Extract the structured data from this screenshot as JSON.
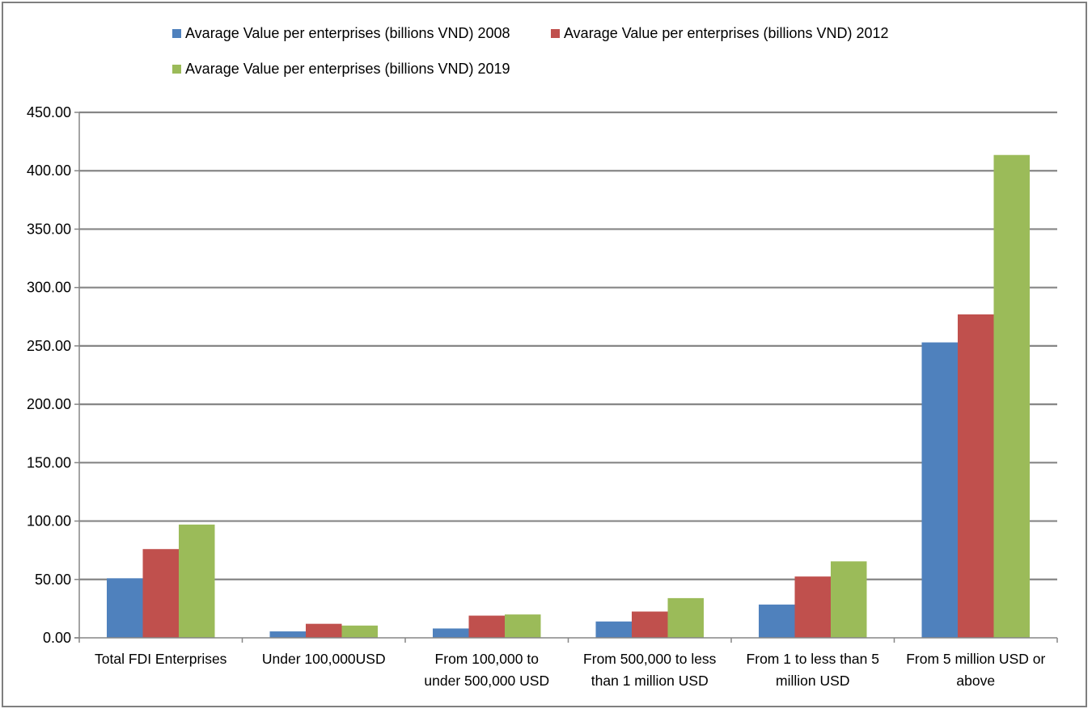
{
  "chart_data": {
    "type": "bar",
    "title": "",
    "xlabel": "",
    "ylabel": "",
    "categories": [
      [
        "Total FDI Enterprises"
      ],
      [
        "Under 100,000USD"
      ],
      [
        "From 100,000 to",
        "under 500,000 USD"
      ],
      [
        "From 500,000 to less",
        "than 1 million USD"
      ],
      [
        "From 1 to less than 5",
        "million USD"
      ],
      [
        "From 5 million USD or",
        "above"
      ]
    ],
    "series": [
      {
        "name": "Avarage Value per enterprises (billions  VND) 2008",
        "color": "#4f81bd",
        "values": [
          51.0,
          5.5,
          8.0,
          14.0,
          28.5,
          253.0
        ]
      },
      {
        "name": "Avarage Value per enterprises (billions  VND) 2012",
        "color": "#c0504d",
        "values": [
          76.0,
          12.0,
          19.0,
          22.5,
          52.5,
          277.0
        ]
      },
      {
        "name": "Avarage Value per enterprises (billions  VND) 2019",
        "color": "#9bbb59",
        "values": [
          97.0,
          10.5,
          20.0,
          34.0,
          65.5,
          413.5
        ]
      }
    ],
    "ylim": [
      0,
      450
    ],
    "yticks": [
      "0.00",
      "50.00",
      "100.00",
      "150.00",
      "200.00",
      "250.00",
      "300.00",
      "350.00",
      "400.00",
      "450.00"
    ],
    "ytick_values": [
      0,
      50,
      100,
      150,
      200,
      250,
      300,
      350,
      400,
      450
    ],
    "grid": true,
    "legend_position": "top"
  }
}
